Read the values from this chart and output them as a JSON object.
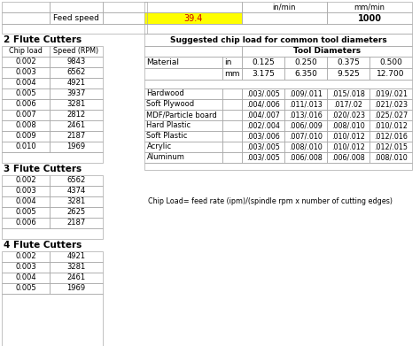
{
  "feed_speed_label": "Feed speed",
  "inmin_label": "in/min",
  "mmmin_label": "mm/min",
  "feed_inmin_value": "39.4",
  "feed_mmmin_value": "1000",
  "feed_inmin_bg": "#FFFF00",
  "feed_inmin_color": "#cc0000",
  "two_flute_title": "2 Flute Cutters",
  "three_flute_title": "3 Flute Cutters",
  "four_flute_title": "4 Flute Cutters",
  "two_flute_data": [
    [
      0.002,
      9843
    ],
    [
      0.003,
      6562
    ],
    [
      0.004,
      4921
    ],
    [
      0.005,
      3937
    ],
    [
      0.006,
      3281
    ],
    [
      0.007,
      2812
    ],
    [
      0.008,
      2461
    ],
    [
      0.009,
      2187
    ],
    [
      0.01,
      1969
    ]
  ],
  "three_flute_data": [
    [
      0.002,
      6562
    ],
    [
      0.003,
      4374
    ],
    [
      0.004,
      3281
    ],
    [
      0.005,
      2625
    ],
    [
      0.006,
      2187
    ]
  ],
  "four_flute_data": [
    [
      0.002,
      4921
    ],
    [
      0.003,
      3281
    ],
    [
      0.004,
      2461
    ],
    [
      0.005,
      1969
    ]
  ],
  "chip_title": "Suggested chip load for common tool diameters",
  "tool_diameters_header": "Tool Diameters",
  "material_col": "Material",
  "in_label": "in",
  "mm_label": "mm",
  "in_diameters": [
    "0.125",
    "0.250",
    "0.375",
    "0.500"
  ],
  "mm_diameters": [
    "3.175",
    "6.350",
    "9.525",
    "12.700"
  ],
  "materials": [
    "Hardwood",
    "Soft Plywood",
    "MDF/Particle board",
    "Hard Plastic",
    "Soft Plastic",
    "Acrylic",
    "Aluminum"
  ],
  "chip_data": [
    [
      ".003/.005",
      ".009/.011",
      ".015/.018",
      ".019/.021"
    ],
    [
      ".004/.006",
      ".011/.013",
      ".017/.02",
      ".021/.023"
    ],
    [
      ".004/.007",
      ".013/.016",
      ".020/.023",
      ".025/.027"
    ],
    [
      ".002/.004",
      ".006/.009",
      ".008/.010",
      ".010/.012"
    ],
    [
      ".003/.006",
      ".007/.010",
      ".010/.012",
      ".012/.016"
    ],
    [
      ".003/.005",
      ".008/.010",
      ".010/.012",
      ".012/.015"
    ],
    [
      ".003/.005",
      ".006/.008",
      ".006/.008",
      ".008/.010"
    ]
  ],
  "chip_load_formula": "Chip Load= feed rate (ipm)/(spindle rpm x number of cutting edges)",
  "bg_color": "#e8e8e8",
  "cell_bg": "#ffffff",
  "border_color": "#aaaaaa"
}
